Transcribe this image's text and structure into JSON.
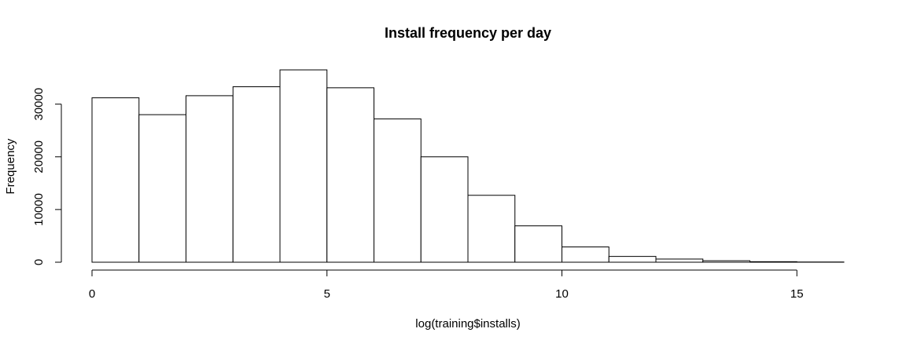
{
  "chart_data": {
    "type": "bar",
    "title": "Install frequency per day",
    "xlabel": "log(training$installs)",
    "ylabel": "Frequency",
    "bins": [
      {
        "start": 0,
        "end": 1,
        "value": 31200
      },
      {
        "start": 1,
        "end": 2,
        "value": 28000
      },
      {
        "start": 2,
        "end": 3,
        "value": 31600
      },
      {
        "start": 3,
        "end": 4,
        "value": 33300
      },
      {
        "start": 4,
        "end": 5,
        "value": 36500
      },
      {
        "start": 5,
        "end": 6,
        "value": 33100
      },
      {
        "start": 6,
        "end": 7,
        "value": 27200
      },
      {
        "start": 7,
        "end": 8,
        "value": 20000
      },
      {
        "start": 8,
        "end": 9,
        "value": 12700
      },
      {
        "start": 9,
        "end": 10,
        "value": 6900
      },
      {
        "start": 10,
        "end": 11,
        "value": 2900
      },
      {
        "start": 11,
        "end": 12,
        "value": 1100
      },
      {
        "start": 12,
        "end": 13,
        "value": 600
      },
      {
        "start": 13,
        "end": 14,
        "value": 280
      },
      {
        "start": 14,
        "end": 15,
        "value": 100
      },
      {
        "start": 15,
        "end": 16,
        "value": 40
      }
    ],
    "xticks": [
      0,
      5,
      10,
      15
    ],
    "yticks": [
      0,
      10000,
      20000,
      30000
    ],
    "xlim": [
      0,
      16
    ],
    "ylim": [
      0,
      36500
    ],
    "grid": false,
    "bar_fill": "#ffffff",
    "bar_stroke": "#000000"
  }
}
